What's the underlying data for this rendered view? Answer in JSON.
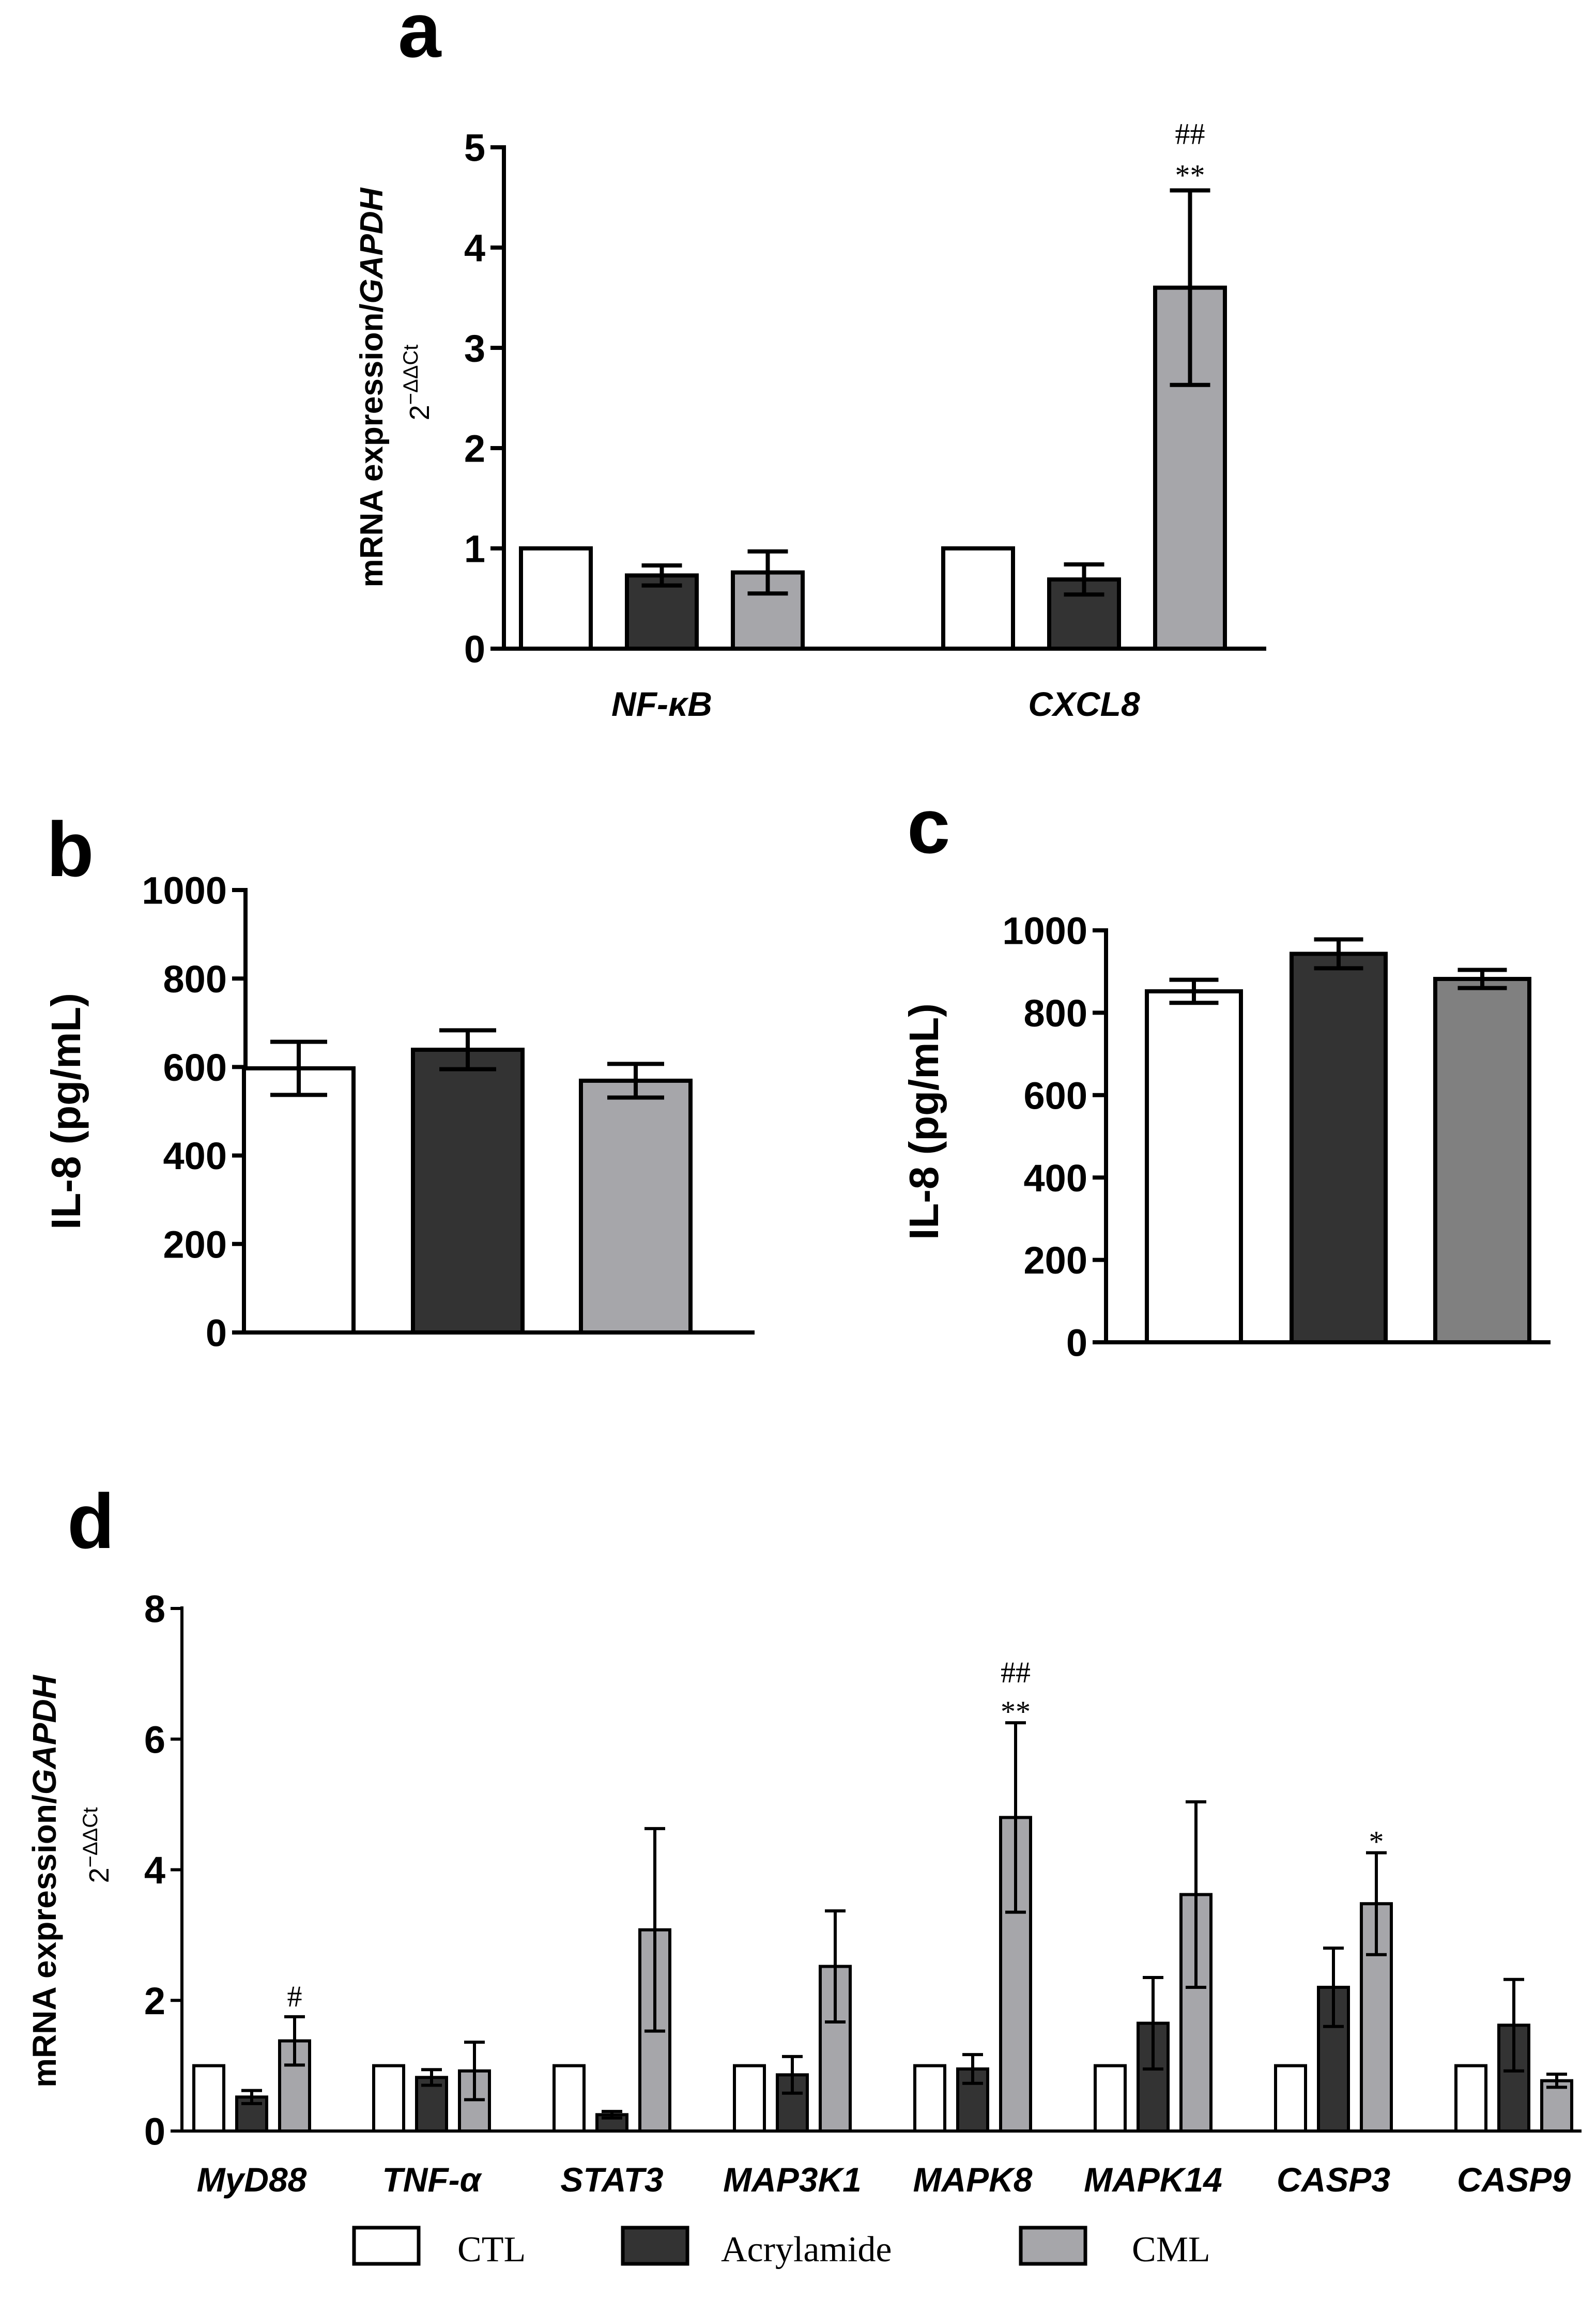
{
  "legend": [
    {
      "label": "CTL",
      "color": "#ffffff"
    },
    {
      "label": "Acrylamide",
      "color": "#333333"
    },
    {
      "label": "CML",
      "color": "#a6a6aa"
    }
  ],
  "chart_data": [
    {
      "panel": "a",
      "type": "bar",
      "ylabel_main": "mRNA expression/",
      "ylabel_italic": "GAPDH",
      "ylabel_sub": "2",
      "ylabel_sup": "−ΔΔCt",
      "ylim": [
        0,
        5
      ],
      "yticks": [
        "0",
        "1",
        "2",
        "3",
        "4",
        "5"
      ],
      "categories": [
        "NF-κB",
        "CXCL8"
      ],
      "series": [
        {
          "name": "CTL",
          "values": [
            1.0,
            1.0
          ],
          "errors": [
            0,
            0
          ]
        },
        {
          "name": "Acrylamide",
          "values": [
            0.73,
            0.69
          ],
          "errors": [
            0.1,
            0.15
          ]
        },
        {
          "name": "CML",
          "values": [
            0.76,
            3.6
          ],
          "errors": [
            0.21,
            0.97
          ]
        }
      ],
      "annotations": [
        {
          "category": 1,
          "series": 2,
          "lines": [
            "##",
            "**"
          ]
        }
      ]
    },
    {
      "panel": "b",
      "type": "bar",
      "ylabel": "IL-8 (pg/mL)",
      "ylim": [
        0,
        1000
      ],
      "yticks": [
        "0",
        "200",
        "400",
        "600",
        "800",
        "1000"
      ],
      "categories": [
        "CTL",
        "Acrylamide",
        "CML"
      ],
      "values": [
        597,
        639,
        569
      ],
      "errors": [
        60,
        44,
        38
      ]
    },
    {
      "panel": "c",
      "type": "bar",
      "ylabel": "IL-8 (pg/mL)",
      "ylim": [
        0,
        1000
      ],
      "yticks": [
        "0",
        "200",
        "400",
        "600",
        "800",
        "1000"
      ],
      "categories": [
        "CTL",
        "Acrylamide",
        "CML"
      ],
      "values": [
        852,
        943,
        882
      ],
      "errors": [
        28,
        35,
        22
      ]
    },
    {
      "panel": "d",
      "type": "bar",
      "ylabel_main": "mRNA expression/",
      "ylabel_italic": "GAPDH",
      "ylabel_sub": "2",
      "ylabel_sup": "−ΔΔCt",
      "ylim": [
        0,
        8
      ],
      "yticks": [
        "0",
        "2",
        "4",
        "6",
        "8"
      ],
      "categories": [
        "MyD88",
        "TNF-α",
        "STAT3",
        "MAP3K1",
        "MAPK8",
        "MAPK14",
        "CASP3",
        "CASP9"
      ],
      "series": [
        {
          "name": "CTL",
          "values": [
            1,
            1,
            1,
            1,
            1,
            1,
            1,
            1
          ],
          "errors": [
            0,
            0,
            0,
            0,
            0,
            0,
            0,
            0
          ]
        },
        {
          "name": "Acrylamide",
          "values": [
            0.52,
            0.82,
            0.25,
            0.86,
            0.95,
            1.65,
            2.2,
            1.62
          ],
          "errors": [
            0.1,
            0.12,
            0.05,
            0.28,
            0.22,
            0.7,
            0.6,
            0.7
          ]
        },
        {
          "name": "CML",
          "values": [
            1.38,
            0.92,
            3.08,
            2.52,
            4.8,
            3.62,
            3.48,
            0.77
          ],
          "errors": [
            0.37,
            0.44,
            1.55,
            0.85,
            1.45,
            1.42,
            0.78,
            0.1
          ]
        }
      ],
      "annotations": [
        {
          "category": 0,
          "series": 2,
          "lines": [
            "#"
          ]
        },
        {
          "category": 4,
          "series": 2,
          "lines": [
            "##",
            "**"
          ]
        },
        {
          "category": 6,
          "series": 2,
          "lines": [
            "*"
          ]
        }
      ]
    }
  ]
}
